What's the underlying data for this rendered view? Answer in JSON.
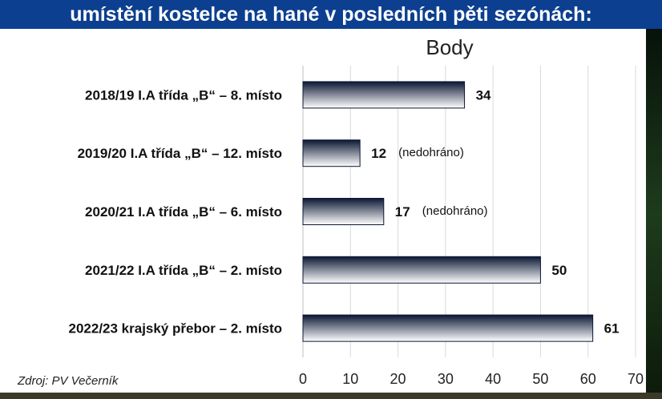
{
  "header": {
    "title": "umístění kostelce na hané v posledních pěti sezónách:"
  },
  "source": "Zdroj: PV Večerník",
  "colors": {
    "header_bg": "#0c3f8f",
    "bar_dark": "#0b1733",
    "bar_light": "#ffffff"
  },
  "chart_data": {
    "type": "bar",
    "orientation": "horizontal",
    "title": "Body",
    "categories": [
      "2018/19 I.A třída „B“ – 8. místo",
      "2019/20 I.A třída „B“ – 12. místo",
      "2020/21 I.A třída „B“ – 6. místo",
      "2021/22 I.A třída „B“ – 2. místo",
      "2022/23 krajský přebor – 2. místo"
    ],
    "values": [
      34,
      12,
      17,
      50,
      61
    ],
    "annotations": [
      "",
      "(nedohráno)",
      "(nedohráno)",
      "",
      ""
    ],
    "xlim": [
      0,
      70
    ],
    "xticks": [
      0,
      10,
      20,
      30,
      40,
      50,
      60,
      70
    ],
    "grid": true
  }
}
